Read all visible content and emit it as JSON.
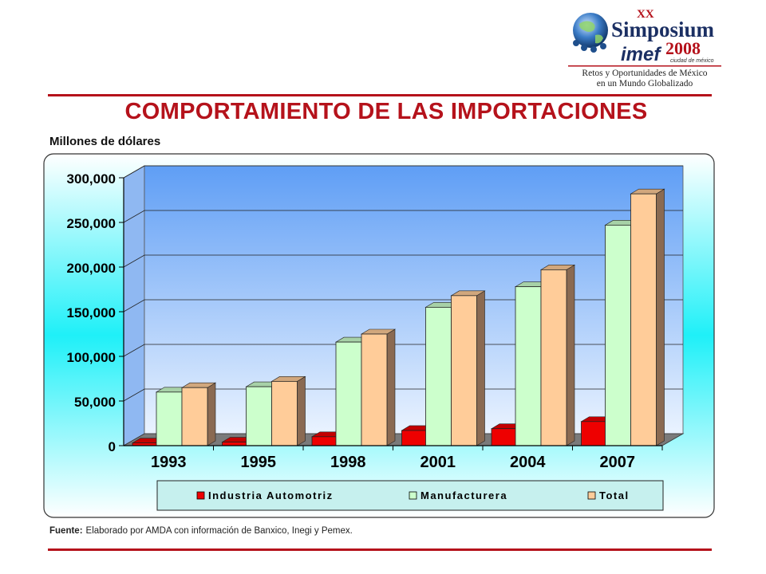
{
  "header": {
    "title": "COMPORTAMIENTO  DE LAS IMPORTACIONES",
    "units": "Millones de dólares"
  },
  "logo": {
    "edition": "XX",
    "event": "Simposium",
    "org": "imef",
    "year": "2008",
    "city": "ciudad de méxico",
    "tagline_1": "Retos y Oportunidades de México",
    "tagline_2": "en un Mundo Globalizado"
  },
  "footer": {
    "source_label": "Fuente:",
    "source_text": "Elaborado por AMDA con información de Banxico, Inegi y Pemex."
  },
  "colors": {
    "accent": "#b5121b",
    "industria": "#ee0000",
    "manufacturera": "#ccffcc",
    "total": "#ffcc99"
  },
  "chart_data": {
    "type": "bar",
    "categories": [
      "1993",
      "1995",
      "1998",
      "2001",
      "2004",
      "2007"
    ],
    "series": [
      {
        "name": "Industria Automotriz",
        "values": [
          3000,
          4000,
          10000,
          17000,
          19000,
          27000
        ]
      },
      {
        "name": "Manufacturera",
        "values": [
          60000,
          66000,
          116000,
          155000,
          178000,
          247000
        ]
      },
      {
        "name": "Total",
        "values": [
          65000,
          72000,
          125000,
          168000,
          197000,
          282000
        ]
      }
    ],
    "yticks": [
      "0",
      "50,000",
      "100,000",
      "150,000",
      "200,000",
      "250,000",
      "300,000"
    ],
    "ylim": [
      0,
      300000
    ],
    "grid": true,
    "legend": "bottom",
    "style": "3d-columns"
  }
}
